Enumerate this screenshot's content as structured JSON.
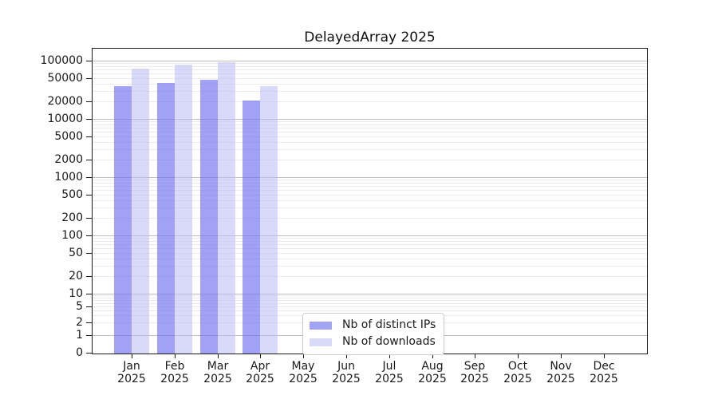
{
  "chart_data": {
    "type": "bar",
    "title": "DelayedArray 2025",
    "year_label": "2025",
    "categories": [
      "Jan",
      "Feb",
      "Mar",
      "Apr",
      "May",
      "Jun",
      "Jul",
      "Aug",
      "Sep",
      "Oct",
      "Nov",
      "Dec"
    ],
    "series": [
      {
        "name": "Nb of distinct IPs",
        "color": "#a3a3f3",
        "bar_fill": "rgba(110,110,240,0.65)",
        "values": [
          36000,
          41000,
          47000,
          21000,
          null,
          null,
          null,
          null,
          null,
          null,
          null,
          null
        ]
      },
      {
        "name": "Nb of downloads",
        "color": "#d9d9f8",
        "bar_fill": "rgba(185,185,245,0.55)",
        "values": [
          73000,
          85000,
          95000,
          37000,
          null,
          null,
          null,
          null,
          null,
          null,
          null,
          null
        ]
      }
    ],
    "yscale": "symlog",
    "ylim": [
      0,
      100000
    ],
    "yticks": [
      100000,
      50000,
      20000,
      10000,
      5000,
      2000,
      1000,
      500,
      200,
      100,
      50,
      20,
      10,
      5,
      2,
      1,
      0
    ],
    "xlabel": "",
    "ylabel": "",
    "grid": true,
    "legend_position": "lower-center"
  }
}
